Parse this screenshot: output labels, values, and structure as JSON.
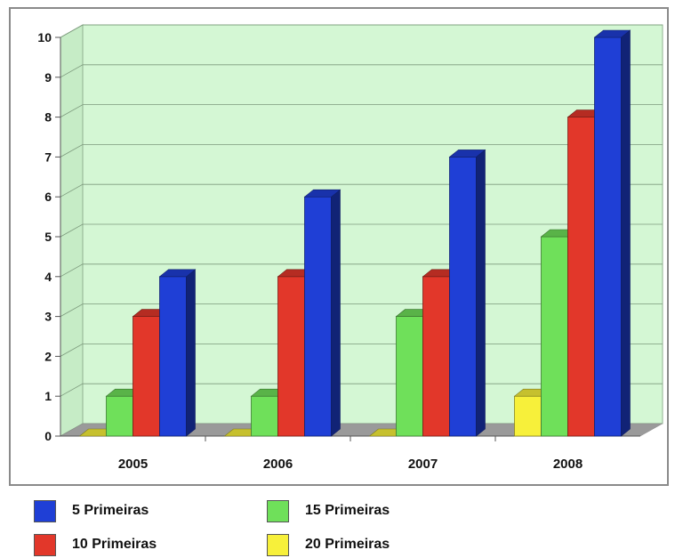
{
  "chart_data": {
    "type": "bar",
    "categories": [
      "2005",
      "2006",
      "2007",
      "2008"
    ],
    "series": [
      {
        "name": "20 Primeiras",
        "color": "#f7f03a",
        "values": [
          0,
          0,
          0,
          1
        ]
      },
      {
        "name": "15 Primeiras",
        "color": "#6fe05a",
        "values": [
          1,
          1,
          3,
          5
        ]
      },
      {
        "name": "10 Primeiras",
        "color": "#e2372a",
        "values": [
          3,
          4,
          4,
          8
        ]
      },
      {
        "name": "5 Primeiras",
        "color": "#1f3fd6",
        "values": [
          4,
          6,
          7,
          10
        ]
      }
    ],
    "ylim": [
      0,
      10
    ],
    "yticks": [
      "0",
      "1",
      "2",
      "3",
      "4",
      "5",
      "6",
      "7",
      "8",
      "9",
      "10"
    ],
    "grid": true,
    "background": "#d4f7d4",
    "legend_position": "bottom",
    "legend": [
      {
        "label": "5 Primeiras",
        "color": "#1f3fd6"
      },
      {
        "label": "15 Primeiras",
        "color": "#6fe05a"
      },
      {
        "label": "10 Primeiras",
        "color": "#e2372a"
      },
      {
        "label": "20 Primeiras",
        "color": "#f7f03a"
      }
    ]
  }
}
